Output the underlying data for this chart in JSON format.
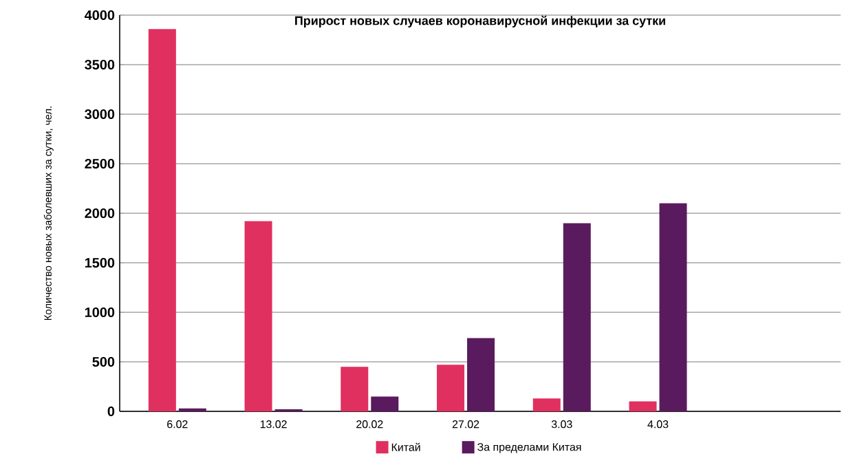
{
  "chart_data": {
    "type": "bar",
    "title": "Прирост новых случаев коронавирусной инфекции за сутки",
    "ylabel": "Количество новых заболевших за сутки, чел.",
    "categories": [
      "6.02",
      "13.02",
      "20.02",
      "27.02",
      "3.03",
      "4.03",
      null
    ],
    "series": [
      {
        "name": "Китай",
        "color": "#e0305f",
        "values": [
          3860,
          1920,
          450,
          470,
          130,
          100,
          null
        ]
      },
      {
        "name": "За пределами Китая",
        "color": "#5a1a5e",
        "values": [
          30,
          20,
          150,
          740,
          1900,
          2100,
          null
        ]
      }
    ],
    "ylim": [
      0,
      4000
    ],
    "yticks": [
      0,
      500,
      1000,
      1500,
      2000,
      2500,
      3000,
      3500,
      4000
    ],
    "grid": "y",
    "legend": "bottom"
  }
}
